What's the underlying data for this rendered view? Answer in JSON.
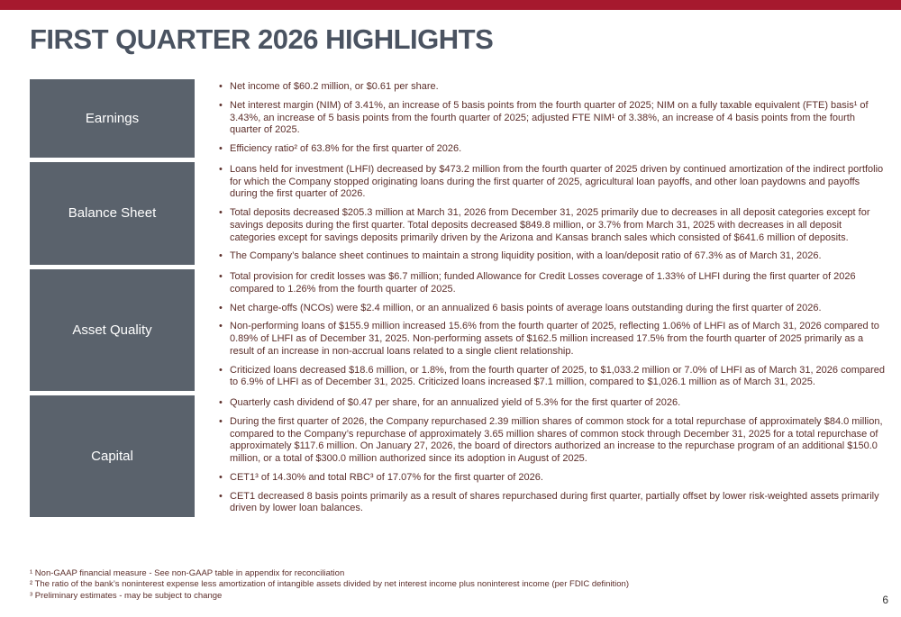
{
  "title": "FIRST QUARTER 2026 HIGHLIGHTS",
  "page_number": "6",
  "colors": {
    "top_bar": "#A6192E",
    "title_text": "#4A5361",
    "section_label_background": "#5A626C",
    "section_label_text": "#FFFFFF",
    "body_text": "#5C2E2A"
  },
  "sections": [
    {
      "label": "Earnings",
      "bullets": [
        "Net income of $60.2 million, or $0.61 per share.",
        "Net interest margin (NIM) of 3.41%, an increase of 5 basis points from the fourth quarter of 2025; NIM on a fully taxable equivalent (FTE) basis¹ of 3.43%, an increase of 5 basis points from the fourth quarter of 2025; adjusted FTE NIM¹ of 3.38%, an increase of 4 basis points from the fourth quarter of 2025.",
        "Efficiency ratio² of 63.8% for the first quarter of 2026."
      ]
    },
    {
      "label": "Balance Sheet",
      "bullets": [
        "Loans held for investment (LHFI) decreased by $473.2 million from the fourth quarter of 2025 driven by continued amortization of the indirect portfolio for which the Company stopped originating loans during the first quarter of 2025, agricultural loan payoffs, and other loan paydowns and payoffs during the first quarter of 2026.",
        "Total deposits decreased $205.3 million at March 31, 2026 from December 31, 2025 primarily due to decreases in all deposit categories except for savings deposits during the first quarter. Total deposits decreased $849.8 million, or 3.7% from March 31, 2025 with decreases in all deposit categories except for savings deposits primarily driven by the Arizona and Kansas branch sales which consisted of $641.6 million of deposits.",
        "The Company’s balance sheet continues to maintain a strong liquidity position, with a loan/deposit ratio of 67.3% as of March 31, 2026."
      ]
    },
    {
      "label": "Asset Quality",
      "bullets": [
        "Total provision for credit losses was $6.7 million; funded Allowance for Credit Losses coverage of 1.33% of LHFI during the first quarter of 2026 compared to 1.26% from the fourth quarter of 2025.",
        "Net charge-offs (NCOs) were $2.4 million, or an annualized 6 basis points of average loans outstanding during the first quarter of 2026.",
        "Non-performing loans of $155.9 million increased 15.6% from the fourth quarter of 2025, reflecting 1.06% of LHFI as of March 31, 2026 compared to 0.89% of LHFI as of December 31, 2025. Non-performing assets of $162.5 million increased 17.5% from the fourth quarter of 2025 primarily as a result of an increase in non-accrual loans related to a single client relationship.",
        "Criticized loans decreased $18.6 million, or 1.8%, from the fourth quarter of 2025, to $1,033.2 million or 7.0% of LHFI as of March 31, 2026 compared to 6.9% of LHFI as of December 31, 2025. Criticized loans increased $7.1 million, compared to $1,026.1 million as of March 31, 2025."
      ]
    },
    {
      "label": "Capital",
      "bullets": [
        "Quarterly cash dividend of $0.47 per share, for an annualized yield of 5.3% for the first quarter of 2026.",
        "During the first quarter of 2026, the Company repurchased 2.39 million shares of common stock for a total repurchase of approximately $84.0 million, compared to the Company’s repurchase of approximately 3.65 million shares of common stock through December 31, 2025 for a total repurchase of approximately $117.6 million. On January 27, 2026, the board of directors authorized an increase to the repurchase program of an additional $150.0 million, or a total of $300.0 million authorized since its adoption in August of 2025.",
        "CET1³ of 14.30% and total RBC³ of 17.07% for the first quarter of 2026.",
        "CET1 decreased 8 basis points primarily as a result of shares repurchased during first quarter, partially offset by lower risk-weighted assets primarily driven by lower loan balances."
      ]
    }
  ],
  "footnotes": [
    "¹ Non-GAAP financial measure - See non-GAAP table in appendix for reconciliation",
    "² The ratio of the bank’s noninterest expense less amortization of intangible assets divided by net interest income plus noninterest income (per FDIC definition)",
    "³ Preliminary estimates - may be subject to change"
  ]
}
